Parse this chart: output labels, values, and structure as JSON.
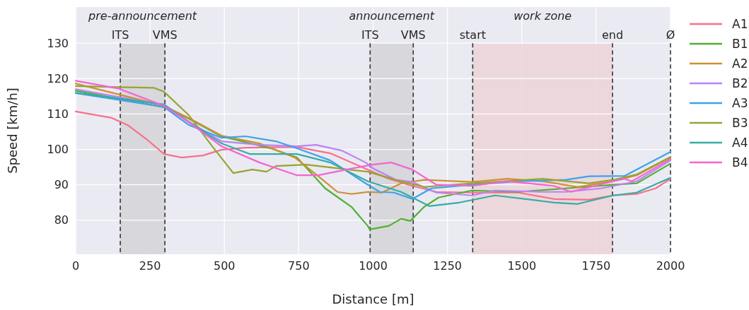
{
  "chart_data": {
    "type": "line",
    "xlabel": "Distance [m]",
    "ylabel": "Speed [km/h]",
    "xlim": [
      0,
      2000
    ],
    "ylim": [
      70.4,
      140.2
    ],
    "xticks": [
      0,
      250,
      500,
      750,
      1000,
      1250,
      1500,
      1750,
      2000
    ],
    "yticks": [
      80,
      90,
      100,
      110,
      120,
      130
    ],
    "grid": true,
    "legend": "right",
    "line_style": "solid",
    "marker": "none",
    "bands": [
      {
        "axis": "x",
        "from": 150,
        "to": 300,
        "label": "pre-announcement",
        "color": "#d3d3d8"
      },
      {
        "axis": "x",
        "from": 990,
        "to": 1135,
        "label": "announcement",
        "color": "#d3d3d8"
      },
      {
        "axis": "x",
        "from": 1335,
        "to": 1805,
        "label": "work zone",
        "color": "#ecd3d9"
      }
    ],
    "ref_lines": [
      {
        "axis": "x",
        "value": 150,
        "label": "ITS",
        "line_style": "dashed"
      },
      {
        "axis": "x",
        "value": 300,
        "label": "VMS",
        "line_style": "dashed"
      },
      {
        "axis": "x",
        "value": 990,
        "label": "ITS",
        "line_style": "dashed"
      },
      {
        "axis": "x",
        "value": 1135,
        "label": "VMS",
        "line_style": "dashed"
      },
      {
        "axis": "x",
        "value": 1335,
        "label": "start",
        "line_style": "dashed"
      },
      {
        "axis": "x",
        "value": 1805,
        "label": "end",
        "line_style": "dashed"
      },
      {
        "axis": "x",
        "value": 2000,
        "label": "Ø",
        "line_style": "dashed"
      }
    ],
    "series": [
      {
        "name": "A1",
        "color": "#f77189",
        "x": [
          0,
          121,
          174,
          238,
          297,
          357,
          428,
          490,
          571,
          744,
          856,
          982,
          1053,
          1132,
          1213,
          1332,
          1489,
          1608,
          1726,
          1807,
          1886,
          1950,
          2000
        ],
        "values": [
          110.7,
          108.9,
          106.9,
          102.9,
          98.7,
          97.7,
          98.3,
          99.9,
          100.5,
          100.7,
          98.9,
          94.3,
          91.7,
          89.7,
          88,
          87.8,
          87.8,
          86,
          85.8,
          87,
          87.4,
          89,
          91.7
        ]
      },
      {
        "name": "B1",
        "color": "#50b131",
        "x": [
          0,
          297,
          380,
          490,
          656,
          744,
          839,
          927,
          982,
          989,
          1053,
          1094,
          1125,
          1172,
          1220,
          1332,
          1489,
          1648,
          1807,
          1886,
          2000
        ],
        "values": [
          116.6,
          111.9,
          108.7,
          103.7,
          100.3,
          97.7,
          89,
          83.8,
          78.4,
          77.4,
          78.4,
          80.4,
          79.8,
          83.8,
          86.4,
          88.4,
          88,
          89,
          90,
          90.4,
          96
        ]
      },
      {
        "name": "A2",
        "color": "#ce9032",
        "x": [
          0,
          297,
          380,
          490,
          618,
          737,
          816,
          880,
          927,
          982,
          1030,
          1094,
          1172,
          1332,
          1451,
          1570,
          1688,
          1807,
          1886,
          2000
        ],
        "values": [
          118.6,
          112.3,
          108.9,
          103.9,
          101.7,
          97.7,
          92.4,
          88,
          87.4,
          88,
          87.8,
          90.4,
          91.4,
          90.8,
          91.7,
          91,
          89.4,
          91,
          92.7,
          97.7
        ]
      },
      {
        "name": "B2",
        "color": "#bb83f4",
        "x": [
          0,
          297,
          380,
          490,
          618,
          744,
          808,
          894,
          975,
          999,
          1077,
          1132,
          1213,
          1332,
          1410,
          1570,
          1648,
          1767,
          1886,
          2000
        ],
        "values": [
          117,
          112.5,
          107.9,
          102.3,
          101.3,
          100.9,
          101.3,
          99.7,
          96.3,
          94.7,
          91.4,
          90.8,
          87.8,
          87,
          88.4,
          88,
          88,
          89,
          91,
          96.9
        ]
      },
      {
        "name": "A3",
        "color": "#3ba3ec",
        "x": [
          0,
          297,
          380,
          490,
          571,
          673,
          744,
          856,
          975,
          1022,
          1070,
          1132,
          1196,
          1332,
          1489,
          1648,
          1726,
          1845,
          2000
        ],
        "values": [
          115.9,
          112,
          106.9,
          103.3,
          103.7,
          102.3,
          100.3,
          96.9,
          90.4,
          88,
          87.8,
          86,
          89,
          90,
          91,
          91.4,
          92.4,
          92.5,
          99.3
        ]
      },
      {
        "name": "B3",
        "color": "#97a431",
        "x": [
          0,
          143,
          262,
          297,
          380,
          459,
          530,
          594,
          642,
          673,
          775,
          856,
          982,
          1014,
          1094,
          1172,
          1332,
          1570,
          1726,
          1807,
          1886,
          2000
        ],
        "values": [
          117.9,
          117.6,
          117.4,
          116.3,
          109.7,
          100.9,
          93.3,
          94.3,
          93.7,
          95.3,
          95.7,
          94.9,
          93.7,
          92.9,
          91,
          89.4,
          90.4,
          91.7,
          90.4,
          91.4,
          92.9,
          97.9
        ]
      },
      {
        "name": "A4",
        "color": "#36ada4",
        "x": [
          0,
          297,
          380,
          490,
          585,
          744,
          856,
          982,
          1094,
          1132,
          1189,
          1291,
          1410,
          1608,
          1688,
          1807,
          1886,
          2000
        ],
        "values": [
          116,
          112.7,
          107.7,
          101.7,
          98.7,
          98.7,
          96.3,
          91,
          88,
          86.4,
          84,
          85,
          87,
          85,
          84.6,
          87,
          87.8,
          92
        ]
      },
      {
        "name": "B4",
        "color": "#f564d4",
        "x": [
          0,
          143,
          297,
          380,
          490,
          618,
          744,
          816,
          935,
          999,
          1061,
          1132,
          1213,
          1332,
          1451,
          1608,
          1665,
          1807,
          1845,
          1870,
          2000
        ],
        "values": [
          119.4,
          117.2,
          112.3,
          107.7,
          100.9,
          96.3,
          92.7,
          92.7,
          94.7,
          95.7,
          96.3,
          94.3,
          90,
          89.7,
          91,
          89.7,
          88,
          91,
          91.7,
          91,
          97.3
        ]
      }
    ]
  }
}
